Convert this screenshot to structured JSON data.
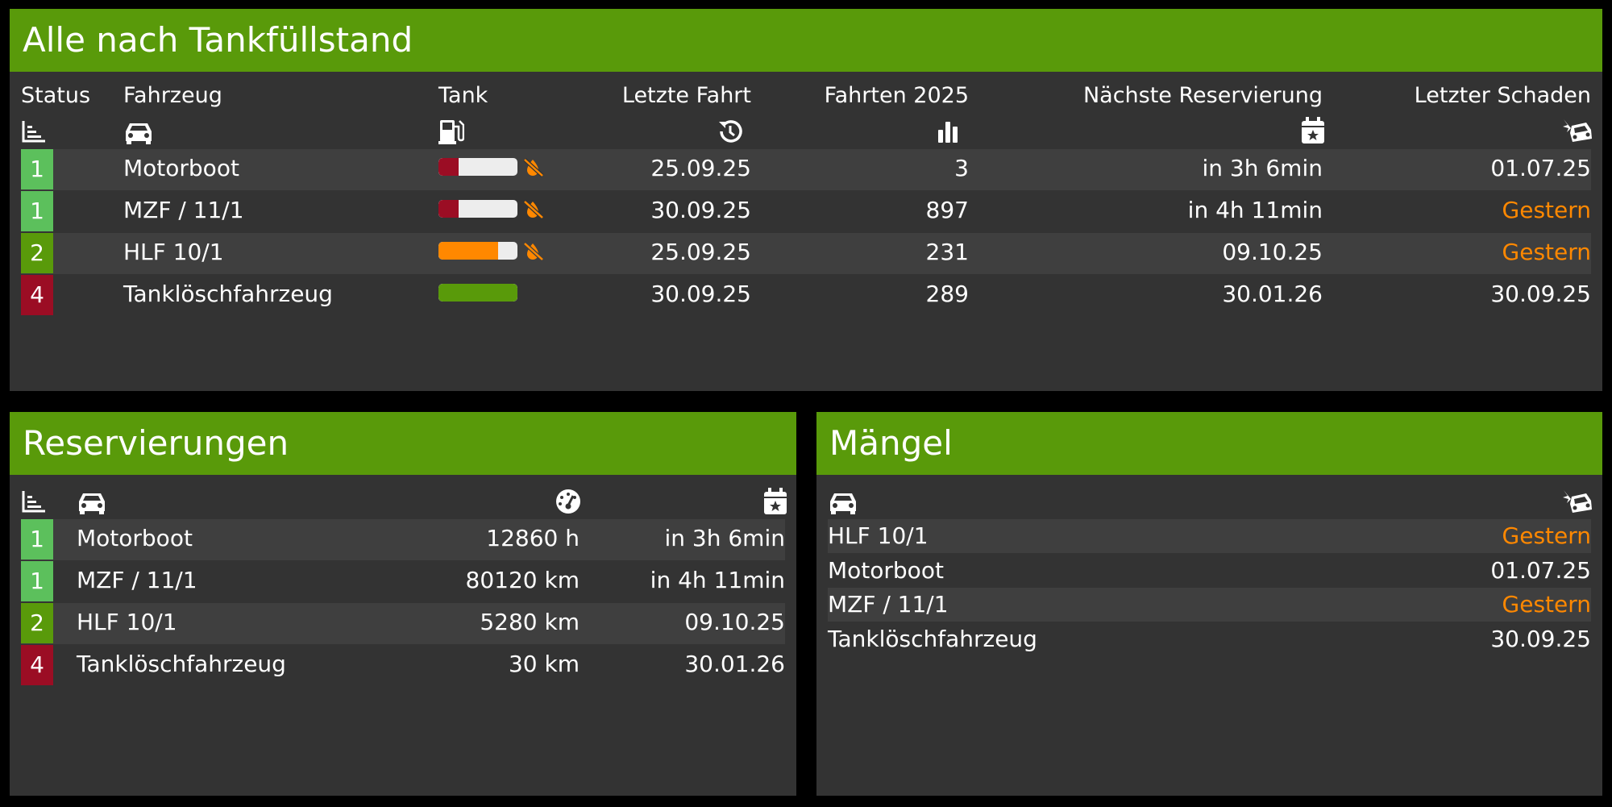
{
  "colors": {
    "accent": "#599a0a",
    "panel_bg": "#333333",
    "row_alt": "#3f3f3f",
    "warning": "#ff8800",
    "status_1": "#5cc05c",
    "status_2": "#599a0a",
    "status_4": "#9b0d24",
    "fuel_low": "#9b0d24",
    "fuel_mid": "#ff8800",
    "fuel_full": "#599a0a"
  },
  "tank_panel": {
    "title": "Alle nach Tankfüllstand",
    "columns": {
      "status": "Status",
      "vehicle": "Fahrzeug",
      "tank": "Tank",
      "last_trip": "Letzte Fahrt",
      "trips": "Fahrten 2025",
      "next_reservation": "Nächste Reservierung",
      "last_damage": "Letzter Schaden"
    },
    "column_icons": [
      "sort-icon",
      "car-icon",
      "fuel-pump-icon",
      "history-icon",
      "bar-chart-icon",
      "calendar-star-icon",
      "car-crash-icon"
    ],
    "rows": [
      {
        "status": "1",
        "status_color": "#5cc05c",
        "vehicle": "Motorboot",
        "fuel_level": 0.25,
        "fuel_color": "#9b0d24",
        "warning_icon": "no-fuel-icon",
        "last_trip": "25.09.25",
        "trips": "3",
        "next_reservation": "in 3h 6min",
        "last_damage": "01.07.25",
        "damage_highlight": false
      },
      {
        "status": "1",
        "status_color": "#5cc05c",
        "vehicle": "MZF / 11/1",
        "fuel_level": 0.25,
        "fuel_color": "#9b0d24",
        "warning_icon": "no-fuel-icon",
        "last_trip": "30.09.25",
        "trips": "897",
        "next_reservation": "in 4h 11min",
        "last_damage": "Gestern",
        "damage_highlight": true
      },
      {
        "status": "2",
        "status_color": "#599a0a",
        "vehicle": "HLF 10/1",
        "fuel_level": 0.75,
        "fuel_color": "#ff8800",
        "warning_icon": "no-fuel-icon",
        "last_trip": "25.09.25",
        "trips": "231",
        "next_reservation": "09.10.25",
        "last_damage": "Gestern",
        "damage_highlight": true
      },
      {
        "status": "4",
        "status_color": "#9b0d24",
        "vehicle": "Tanklöschfahrzeug",
        "fuel_level": 1.0,
        "fuel_color": "#599a0a",
        "warning_icon": "",
        "last_trip": "30.09.25",
        "trips": "289",
        "next_reservation": "30.01.26",
        "last_damage": "30.09.25",
        "damage_highlight": false
      }
    ]
  },
  "reservations_panel": {
    "title": "Reservierungen",
    "column_icons": [
      "sort-icon",
      "car-icon",
      "gauge-icon",
      "calendar-star-icon"
    ],
    "rows": [
      {
        "status": "1",
        "status_color": "#5cc05c",
        "vehicle": "Motorboot",
        "mileage": "12860 h",
        "when": "in 3h 6min"
      },
      {
        "status": "1",
        "status_color": "#5cc05c",
        "vehicle": "MZF / 11/1",
        "mileage": "80120 km",
        "when": "in 4h 11min"
      },
      {
        "status": "2",
        "status_color": "#599a0a",
        "vehicle": "HLF 10/1",
        "mileage": "5280 km",
        "when": "09.10.25"
      },
      {
        "status": "4",
        "status_color": "#9b0d24",
        "vehicle": "Tanklöschfahrzeug",
        "mileage": "30 km",
        "when": "30.01.26"
      }
    ]
  },
  "defects_panel": {
    "title": "Mängel",
    "column_icons": [
      "car-icon",
      "car-crash-icon"
    ],
    "rows": [
      {
        "vehicle": "HLF 10/1",
        "date": "Gestern",
        "highlight": true
      },
      {
        "vehicle": "Motorboot",
        "date": "01.07.25",
        "highlight": false
      },
      {
        "vehicle": "MZF / 11/1",
        "date": "Gestern",
        "highlight": true
      },
      {
        "vehicle": "Tanklöschfahrzeug",
        "date": "30.09.25",
        "highlight": false
      }
    ]
  }
}
